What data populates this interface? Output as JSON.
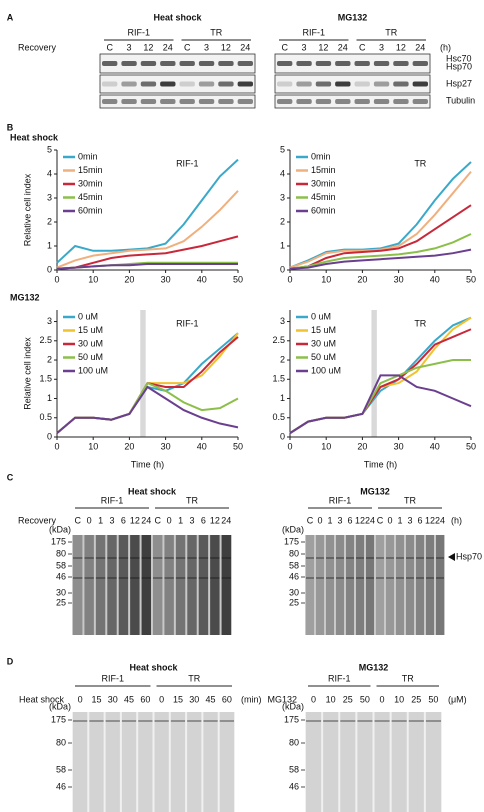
{
  "panel_a": {
    "label": "A",
    "row_label": "Recovery",
    "unit": "(h)",
    "groups": [
      {
        "title": "Heat shock",
        "cell_lines": [
          "RIF-1",
          "TR"
        ],
        "lanes": [
          "C",
          "3",
          "12",
          "24",
          "C",
          "3",
          "12",
          "24"
        ]
      },
      {
        "title": "MG132",
        "cell_lines": [
          "RIF-1",
          "TR"
        ],
        "lanes": [
          "C",
          "3",
          "12",
          "24",
          "C",
          "3",
          "12",
          "24"
        ]
      }
    ],
    "bands": [
      "Hsc70",
      "Hsp70",
      "Hsp27",
      "Tubulin"
    ]
  },
  "panel_b": {
    "label": "B"
  },
  "chart_data": [
    {
      "type": "line",
      "title": "Heat shock",
      "annotation": "RIF-1",
      "ylabel": "Relative cell index",
      "legend": "upper left",
      "x": [
        0,
        5,
        10,
        15,
        20,
        25,
        30,
        35,
        40,
        45,
        50
      ],
      "xlim": [
        0,
        50
      ],
      "xticks": [
        0,
        10,
        20,
        30,
        40,
        50
      ],
      "ylim": [
        0,
        5
      ],
      "yticks": [
        0,
        1,
        2,
        3,
        4,
        5
      ],
      "series": [
        {
          "name": "0min",
          "color": "#3aa9c9",
          "values": [
            0.3,
            1.0,
            0.8,
            0.8,
            0.85,
            0.9,
            1.1,
            1.9,
            2.9,
            3.9,
            4.6
          ]
        },
        {
          "name": "15min",
          "color": "#f0b07e",
          "values": [
            0.1,
            0.4,
            0.6,
            0.7,
            0.8,
            0.85,
            0.9,
            1.2,
            1.8,
            2.5,
            3.3
          ]
        },
        {
          "name": "30min",
          "color": "#c8283a",
          "values": [
            0.05,
            0.1,
            0.3,
            0.5,
            0.6,
            0.65,
            0.7,
            0.85,
            1.0,
            1.2,
            1.4
          ]
        },
        {
          "name": "45min",
          "color": "#8cbf4a",
          "values": [
            0.05,
            0.1,
            0.15,
            0.2,
            0.25,
            0.3,
            0.3,
            0.3,
            0.3,
            0.3,
            0.3
          ]
        },
        {
          "name": "60min",
          "color": "#6b3f8f",
          "values": [
            0.05,
            0.1,
            0.15,
            0.2,
            0.2,
            0.25,
            0.25,
            0.25,
            0.25,
            0.25,
            0.25
          ]
        }
      ]
    },
    {
      "type": "line",
      "annotation": "TR",
      "legend": "upper left",
      "x": [
        0,
        5,
        10,
        15,
        20,
        25,
        30,
        35,
        40,
        45,
        50
      ],
      "xlim": [
        0,
        50
      ],
      "xticks": [
        0,
        10,
        20,
        30,
        40,
        50
      ],
      "ylim": [
        0,
        5
      ],
      "yticks": [
        0,
        1,
        2,
        3,
        4,
        5
      ],
      "series": [
        {
          "name": "0min",
          "color": "#3aa9c9",
          "values": [
            0.1,
            0.4,
            0.75,
            0.85,
            0.85,
            0.9,
            1.1,
            1.9,
            2.9,
            3.8,
            4.5
          ]
        },
        {
          "name": "15min",
          "color": "#f0b07e",
          "values": [
            0.1,
            0.35,
            0.7,
            0.8,
            0.8,
            0.85,
            1.0,
            1.5,
            2.3,
            3.2,
            4.1
          ]
        },
        {
          "name": "30min",
          "color": "#c8283a",
          "values": [
            0.05,
            0.15,
            0.5,
            0.7,
            0.75,
            0.8,
            0.9,
            1.2,
            1.7,
            2.2,
            2.7
          ]
        },
        {
          "name": "45min",
          "color": "#8cbf4a",
          "values": [
            0.05,
            0.15,
            0.35,
            0.5,
            0.55,
            0.6,
            0.65,
            0.75,
            0.9,
            1.15,
            1.5
          ]
        },
        {
          "name": "60min",
          "color": "#6b3f8f",
          "values": [
            0.05,
            0.1,
            0.25,
            0.35,
            0.4,
            0.45,
            0.5,
            0.55,
            0.6,
            0.7,
            0.85
          ]
        }
      ]
    },
    {
      "type": "line",
      "title": "MG132",
      "annotation": "RIF-1",
      "ylabel": "Relative cell index",
      "xlabel": "Time (h)",
      "legend": "upper left",
      "highlight_x": [
        23,
        24.5
      ],
      "x": [
        0,
        5,
        10,
        15,
        20,
        25,
        30,
        35,
        40,
        45,
        50
      ],
      "xlim": [
        0,
        50
      ],
      "xticks": [
        0,
        10,
        20,
        30,
        40,
        50
      ],
      "ylim": [
        0,
        3.3
      ],
      "yticks": [
        0,
        0.5,
        1,
        1.5,
        2,
        2.5,
        3
      ],
      "series": [
        {
          "name": "0 uM",
          "color": "#3aa9c9",
          "values": [
            0.1,
            0.5,
            0.5,
            0.45,
            0.6,
            1.3,
            1.2,
            1.4,
            1.9,
            2.3,
            2.7
          ]
        },
        {
          "name": "15 uM",
          "color": "#f2c12e",
          "values": [
            0.1,
            0.5,
            0.5,
            0.45,
            0.6,
            1.4,
            1.4,
            1.4,
            1.6,
            2.1,
            2.7
          ]
        },
        {
          "name": "30 uM",
          "color": "#c8283a",
          "values": [
            0.1,
            0.5,
            0.5,
            0.45,
            0.6,
            1.4,
            1.3,
            1.3,
            1.7,
            2.2,
            2.6
          ]
        },
        {
          "name": "50 uM",
          "color": "#8cbf4a",
          "values": [
            0.1,
            0.5,
            0.5,
            0.45,
            0.6,
            1.4,
            1.2,
            0.9,
            0.7,
            0.75,
            1.0
          ]
        },
        {
          "name": "100 uM",
          "color": "#6b3f8f",
          "values": [
            0.1,
            0.5,
            0.5,
            0.45,
            0.6,
            1.3,
            1.0,
            0.7,
            0.5,
            0.35,
            0.25
          ]
        }
      ]
    },
    {
      "type": "line",
      "annotation": "TR",
      "xlabel": "Time (h)",
      "legend": "upper left",
      "highlight_x": [
        22.5,
        24
      ],
      "x": [
        0,
        5,
        10,
        15,
        20,
        25,
        30,
        35,
        40,
        45,
        50
      ],
      "xlim": [
        0,
        50
      ],
      "xticks": [
        0,
        10,
        20,
        30,
        40,
        50
      ],
      "ylim": [
        0,
        3.3
      ],
      "yticks": [
        0,
        0.5,
        1,
        1.5,
        2,
        2.5,
        3
      ],
      "series": [
        {
          "name": "0 uM",
          "color": "#3aa9c9",
          "values": [
            0.1,
            0.4,
            0.5,
            0.5,
            0.6,
            1.2,
            1.5,
            2.0,
            2.5,
            2.9,
            3.1
          ]
        },
        {
          "name": "15 uM",
          "color": "#f2c12e",
          "values": [
            0.1,
            0.4,
            0.5,
            0.5,
            0.6,
            1.3,
            1.4,
            1.7,
            2.3,
            2.8,
            3.1
          ]
        },
        {
          "name": "30 uM",
          "color": "#c8283a",
          "values": [
            0.1,
            0.4,
            0.5,
            0.5,
            0.6,
            1.3,
            1.5,
            1.9,
            2.4,
            2.6,
            2.8
          ]
        },
        {
          "name": "50 uM",
          "color": "#8cbf4a",
          "values": [
            0.1,
            0.4,
            0.5,
            0.5,
            0.6,
            1.4,
            1.6,
            1.8,
            1.9,
            2.0,
            2.0
          ]
        },
        {
          "name": "100 uM",
          "color": "#6b3f8f",
          "values": [
            0.1,
            0.4,
            0.5,
            0.5,
            0.6,
            1.6,
            1.6,
            1.3,
            1.2,
            1.0,
            0.8
          ]
        }
      ]
    }
  ],
  "panel_c": {
    "label": "C",
    "row_label": "Recovery",
    "unit": "(h)",
    "mw_unit": "(kDa)",
    "arrow_label": "Hsp70",
    "markers": [
      "175",
      "80",
      "58",
      "46",
      "30",
      "25"
    ],
    "groups": [
      {
        "title": "Heat shock",
        "cell_lines": [
          "RIF-1",
          "TR"
        ],
        "lanes": [
          "C",
          "0",
          "1",
          "3",
          "6",
          "12",
          "24",
          "C",
          "0",
          "1",
          "3",
          "6",
          "12",
          "24"
        ]
      },
      {
        "title": "MG132",
        "cell_lines": [
          "RIF-1",
          "TR"
        ],
        "lanes": [
          "C",
          "0",
          "1",
          "3",
          "6",
          "12",
          "24",
          "C",
          "0",
          "1",
          "3",
          "6",
          "12",
          "24"
        ]
      }
    ]
  },
  "panel_d": {
    "label": "D",
    "mw_unit": "(kDa)",
    "markers": [
      "175",
      "80",
      "58",
      "46"
    ],
    "groups": [
      {
        "title": "Heat shock",
        "row_label": "Heat shock",
        "unit": "(min)",
        "cell_lines": [
          "RIF-1",
          "TR"
        ],
        "lanes": [
          "0",
          "15",
          "30",
          "45",
          "60",
          "0",
          "15",
          "30",
          "45",
          "60"
        ]
      },
      {
        "title": "MG132",
        "row_label": "MG132",
        "unit": "(μM)",
        "cell_lines": [
          "RIF-1",
          "TR"
        ],
        "lanes": [
          "0",
          "10",
          "25",
          "50",
          "0",
          "10",
          "25",
          "50"
        ]
      }
    ]
  }
}
